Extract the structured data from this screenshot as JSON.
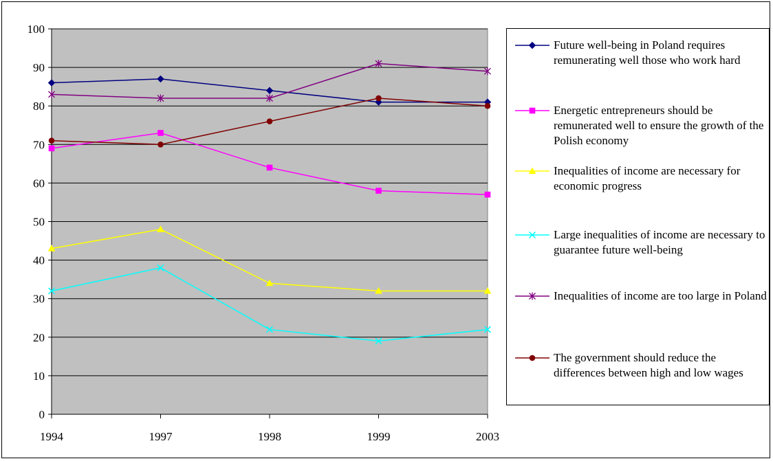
{
  "chart_data": {
    "type": "line",
    "x": [
      "1994",
      "1997",
      "1998",
      "1999",
      "2003"
    ],
    "ylim": [
      0,
      100
    ],
    "yticks": [
      0,
      10,
      20,
      30,
      40,
      50,
      60,
      70,
      80,
      90,
      100
    ],
    "grid": true,
    "legend_position": "right",
    "plot_background": "#c0c0c0",
    "series": [
      {
        "name": "Future well-being in Poland requires remunerating well those who work hard",
        "values": [
          86,
          87,
          84,
          81,
          81
        ],
        "color": "#000080",
        "marker": "diamond"
      },
      {
        "name": "Energetic entrepreneurs should  be remunerated well to ensure the growth of the Polish economy",
        "values": [
          69,
          73,
          64,
          58,
          57
        ],
        "color": "#ff00ff",
        "marker": "square"
      },
      {
        "name": "Inequalities of income are necessary for economic progress",
        "values": [
          43,
          48,
          34,
          32,
          32
        ],
        "color": "#ffff00",
        "marker": "triangle"
      },
      {
        "name": "Large inequalities of income are necessary to guarantee future well-being",
        "values": [
          32,
          38,
          22,
          19,
          22
        ],
        "color": "#00ffff",
        "marker": "x"
      },
      {
        "name": "Inequalities of income are too large in Poland",
        "values": [
          83,
          82,
          82,
          91,
          89
        ],
        "color": "#800080",
        "marker": "star"
      },
      {
        "name": "The government should reduce the differences between high and low wages",
        "values": [
          71,
          70,
          76,
          82,
          80
        ],
        "color": "#800000",
        "marker": "circle"
      }
    ]
  }
}
